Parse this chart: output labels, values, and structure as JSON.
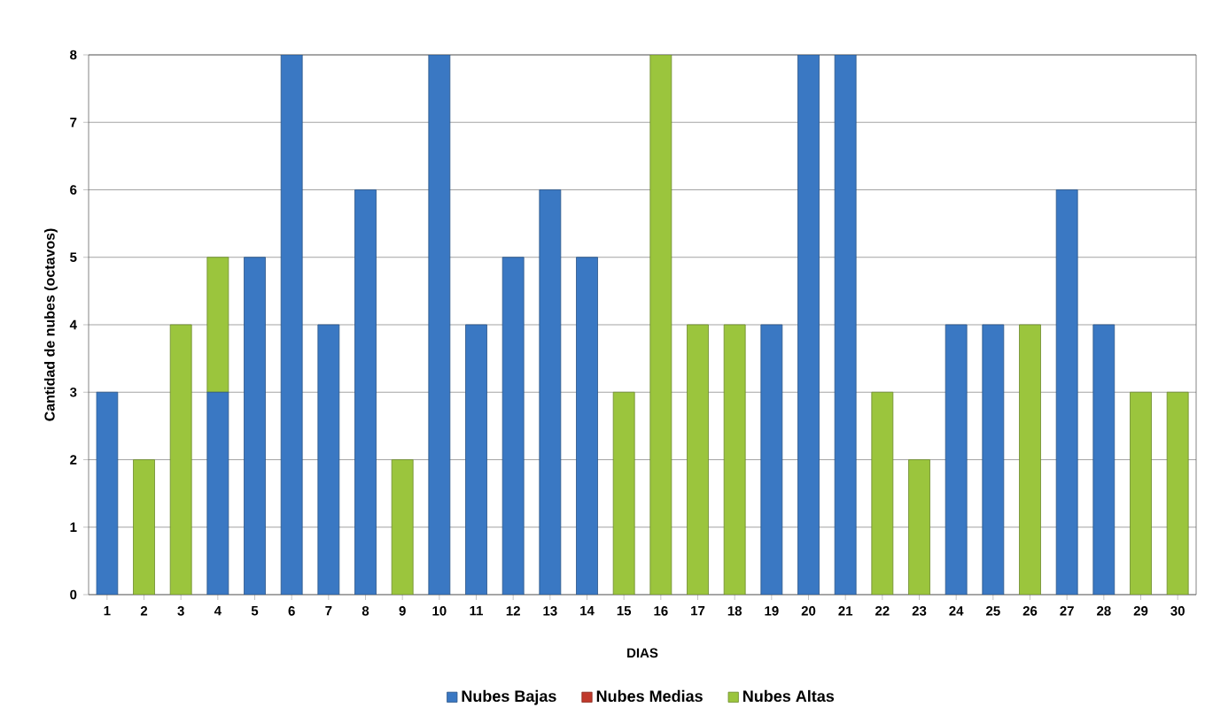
{
  "chart_data": {
    "type": "bar",
    "stacked": true,
    "xlabel": "DIAS",
    "ylabel": "Cantidad de nubes  (octavos)",
    "categories": [
      "1",
      "2",
      "3",
      "4",
      "5",
      "6",
      "7",
      "8",
      "9",
      "10",
      "11",
      "12",
      "13",
      "14",
      "15",
      "16",
      "17",
      "18",
      "19",
      "20",
      "21",
      "22",
      "23",
      "24",
      "25",
      "26",
      "27",
      "28",
      "29",
      "30"
    ],
    "series": [
      {
        "name": "Nubes Bajas",
        "color": "#3a78c3",
        "values": [
          3,
          0,
          0,
          3,
          5,
          8,
          4,
          6,
          0,
          8,
          4,
          5,
          6,
          5,
          0,
          0,
          0,
          0,
          4,
          8,
          8,
          0,
          0,
          4,
          4,
          0,
          6,
          4,
          0,
          0
        ]
      },
      {
        "name": "Nubes Medias",
        "color": "#c0392b",
        "values": [
          0,
          0,
          0,
          0,
          0,
          0,
          0,
          0,
          0,
          0,
          0,
          0,
          0,
          0,
          0,
          0,
          0,
          0,
          0,
          0,
          0,
          0,
          0,
          0,
          0,
          0,
          0,
          0,
          0,
          0
        ]
      },
      {
        "name": "Nubes Altas",
        "color": "#9bc53d",
        "values": [
          0,
          2,
          4,
          2,
          0,
          0,
          0,
          0,
          2,
          0,
          0,
          0,
          0,
          0,
          3,
          8,
          4,
          4,
          0,
          0,
          0,
          3,
          2,
          0,
          0,
          4,
          0,
          0,
          3,
          3
        ]
      }
    ],
    "ylim": [
      0,
      8
    ],
    "yticks": [
      0,
      1,
      2,
      3,
      4,
      5,
      6,
      7,
      8
    ],
    "grid": "y",
    "legend": "bottom"
  }
}
